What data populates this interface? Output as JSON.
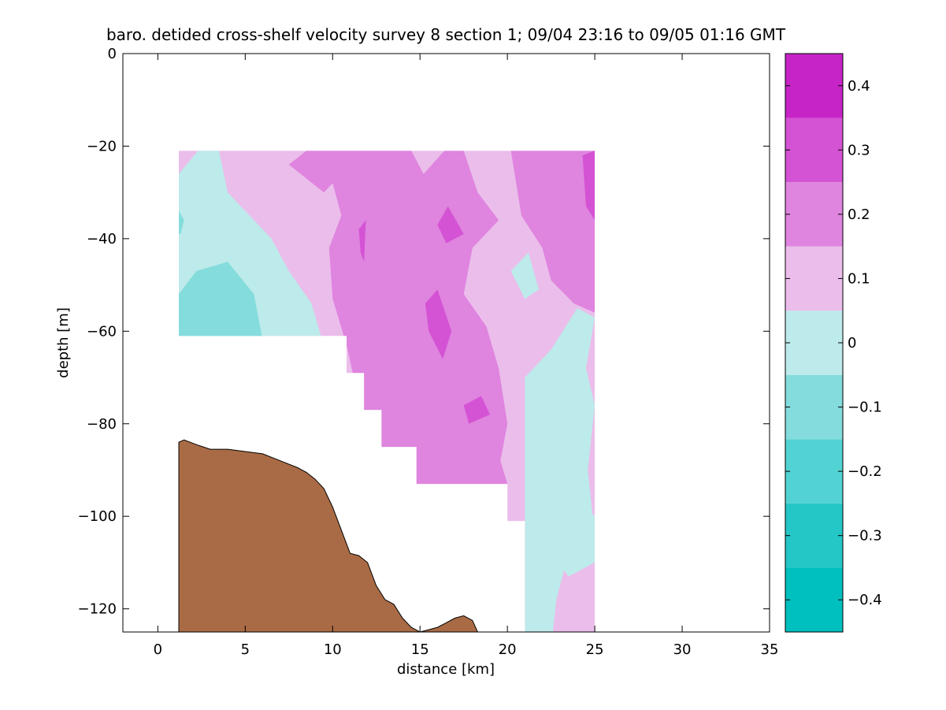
{
  "chart_data": {
    "type": "contourf",
    "title": "baro. detided cross-shelf velocity survey 8 section 1; 09/04 23:16 to 09/05 01:16 GMT",
    "xlabel": "distance [km]",
    "ylabel": "depth [m]",
    "xlim": [
      -2,
      35
    ],
    "ylim": [
      -125,
      0
    ],
    "xticks": [
      0,
      5,
      10,
      15,
      20,
      25,
      30,
      35
    ],
    "yticks": [
      0,
      -20,
      -40,
      -60,
      -80,
      -100,
      -120
    ],
    "colorbar": {
      "range": [
        -0.45,
        0.45
      ],
      "levels": [
        -0.45,
        -0.35,
        -0.25,
        -0.15,
        -0.05,
        0.05,
        0.15,
        0.25,
        0.35,
        0.45
      ],
      "colors": [
        "#00bfbf",
        "#24c6c6",
        "#52d2d2",
        "#84dcdc",
        "#bdeaea",
        "#ebbdeb",
        "#df84df",
        "#d452d4",
        "#c624c6"
      ],
      "ticks": [
        -0.4,
        -0.3,
        -0.2,
        -0.1,
        0,
        0.1,
        0.2,
        0.3,
        0.4
      ],
      "tick_labels": [
        "−0.4",
        "−0.3",
        "−0.2",
        "−0.1",
        "0",
        "0.1",
        "0.2",
        "0.3",
        "0.4"
      ]
    },
    "data_mask": [
      [
        1.2,
        -21
      ],
      [
        25,
        -21
      ],
      [
        25,
        -125
      ],
      [
        21,
        -125
      ],
      [
        21,
        -101
      ],
      [
        20,
        -101
      ],
      [
        20,
        -93
      ],
      [
        14.8,
        -93
      ],
      [
        14.8,
        -85
      ],
      [
        12.8,
        -85
      ],
      [
        12.8,
        -77
      ],
      [
        11.8,
        -77
      ],
      [
        11.8,
        -69
      ],
      [
        10.8,
        -69
      ],
      [
        10.8,
        -61
      ],
      [
        1.2,
        -61
      ]
    ],
    "velocity_regions": [
      {
        "value": 0.05,
        "points": [
          [
            1.2,
            -21
          ],
          [
            25,
            -21
          ],
          [
            25,
            -125
          ],
          [
            1.2,
            -125
          ]
        ]
      },
      {
        "value": -0.05,
        "points": [
          [
            1.2,
            -26
          ],
          [
            2.3,
            -21
          ],
          [
            3.5,
            -21
          ],
          [
            4,
            -30
          ],
          [
            5,
            -34
          ],
          [
            6.5,
            -40
          ],
          [
            7.5,
            -47
          ],
          [
            8.8,
            -54
          ],
          [
            9.4,
            -62
          ],
          [
            1.2,
            -62
          ]
        ]
      },
      {
        "value": -0.15,
        "points": [
          [
            1.2,
            -52
          ],
          [
            2.2,
            -47
          ],
          [
            4,
            -45
          ],
          [
            5.5,
            -52
          ],
          [
            6,
            -62
          ],
          [
            1.2,
            -62
          ]
        ]
      },
      {
        "value": -0.15,
        "points": [
          [
            1.2,
            -34
          ],
          [
            1.5,
            -36
          ],
          [
            1.3,
            -39
          ],
          [
            1.2,
            -39
          ]
        ]
      },
      {
        "value": 0.15,
        "points": [
          [
            10,
            -21
          ],
          [
            14.5,
            -21
          ],
          [
            15.2,
            -26
          ],
          [
            16.4,
            -21
          ],
          [
            17.5,
            -21
          ],
          [
            18.3,
            -30
          ],
          [
            19.5,
            -36
          ],
          [
            18,
            -42
          ],
          [
            17.5,
            -52
          ],
          [
            18.8,
            -59
          ],
          [
            19.5,
            -68
          ],
          [
            20,
            -80
          ],
          [
            19.6,
            -88
          ],
          [
            20,
            -93
          ],
          [
            14.8,
            -93
          ],
          [
            12.8,
            -85
          ],
          [
            11.5,
            -75
          ],
          [
            10.8,
            -63
          ],
          [
            10,
            -53
          ],
          [
            9.8,
            -42
          ],
          [
            10.5,
            -35
          ],
          [
            10,
            -28
          ]
        ]
      },
      {
        "value": 0.15,
        "points": [
          [
            7.5,
            -24
          ],
          [
            8.5,
            -21
          ],
          [
            10,
            -21
          ],
          [
            10.5,
            -26
          ],
          [
            9.5,
            -30
          ],
          [
            8.5,
            -27
          ]
        ]
      },
      {
        "value": 0.15,
        "points": [
          [
            20.2,
            -21
          ],
          [
            24,
            -21
          ],
          [
            25,
            -21
          ],
          [
            25,
            -56
          ],
          [
            23.8,
            -54
          ],
          [
            22.5,
            -49
          ],
          [
            22,
            -42
          ],
          [
            20.8,
            -35
          ],
          [
            20.5,
            -28
          ]
        ]
      },
      {
        "value": 0.15,
        "points": [
          [
            17,
            -72
          ],
          [
            18.5,
            -70
          ],
          [
            18.8,
            -80
          ],
          [
            18.2,
            -86
          ],
          [
            17,
            -85
          ]
        ]
      },
      {
        "value": 0.25,
        "points": [
          [
            16,
            -37
          ],
          [
            16.6,
            -33
          ],
          [
            17.5,
            -39
          ],
          [
            16.5,
            -41
          ]
        ]
      },
      {
        "value": 0.25,
        "points": [
          [
            15.3,
            -54
          ],
          [
            16,
            -51
          ],
          [
            16.8,
            -60
          ],
          [
            16.3,
            -66
          ],
          [
            15.5,
            -60
          ]
        ]
      },
      {
        "value": 0.25,
        "points": [
          [
            17.5,
            -76
          ],
          [
            18.5,
            -74
          ],
          [
            19,
            -78
          ],
          [
            17.8,
            -80
          ]
        ]
      },
      {
        "value": 0.25,
        "points": [
          [
            11.5,
            -38
          ],
          [
            11.9,
            -36
          ],
          [
            11.8,
            -45
          ],
          [
            11.6,
            -43
          ]
        ]
      },
      {
        "value": 0.25,
        "points": [
          [
            24.3,
            -22
          ],
          [
            25,
            -21
          ],
          [
            25,
            -36
          ],
          [
            24.5,
            -33
          ]
        ]
      },
      {
        "value": -0.05,
        "points": [
          [
            21,
            -70
          ],
          [
            22.5,
            -64
          ],
          [
            24,
            -55
          ],
          [
            25,
            -57
          ],
          [
            24.5,
            -68
          ],
          [
            25,
            -76
          ],
          [
            24.6,
            -90
          ],
          [
            25,
            -104
          ],
          [
            23.5,
            -108
          ],
          [
            22.8,
            -118
          ],
          [
            22.6,
            -125
          ],
          [
            21,
            -125
          ]
        ]
      },
      {
        "value": -0.05,
        "points": [
          [
            20.2,
            -47
          ],
          [
            21.2,
            -43
          ],
          [
            21.8,
            -51
          ],
          [
            21,
            -53
          ]
        ]
      },
      {
        "value": -0.05,
        "points": [
          [
            22,
            -99
          ],
          [
            24,
            -96
          ],
          [
            25,
            -100
          ],
          [
            25,
            -110
          ],
          [
            23.5,
            -113
          ],
          [
            22.5,
            -108
          ]
        ]
      }
    ],
    "bathymetry": {
      "fill": "#a96b45",
      "x": [
        1.2,
        1.5,
        2.2,
        3,
        4,
        5,
        6,
        7,
        8,
        8.5,
        9,
        9.5,
        10,
        10.5,
        11,
        11.5,
        12,
        12.5,
        13,
        13.5,
        14,
        14.5,
        15,
        15.5,
        16,
        16.5,
        17,
        17.5,
        18,
        18.3
      ],
      "y": [
        -84,
        -83.5,
        -84.5,
        -85.5,
        -85.5,
        -86,
        -86.5,
        -88,
        -89.5,
        -90.5,
        -92,
        -94,
        -98,
        -103,
        -108,
        -108.5,
        -110,
        -115,
        -118,
        -119,
        -122,
        -124,
        -125,
        -124.5,
        -124,
        -123,
        -122,
        -121.5,
        -122.5,
        -125
      ]
    }
  }
}
